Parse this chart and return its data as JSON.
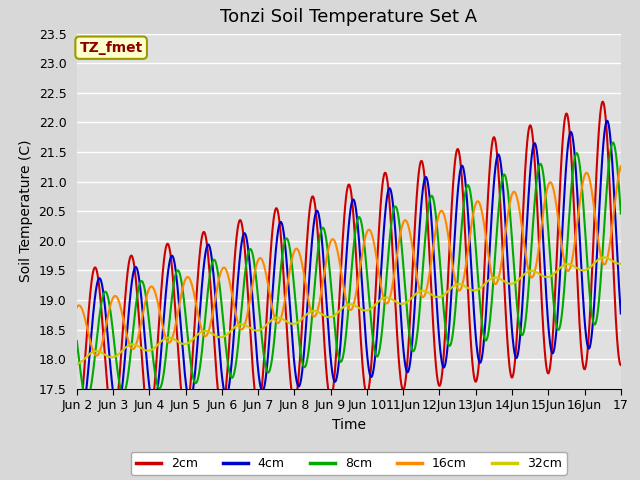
{
  "title": "Tonzi Soil Temperature Set A",
  "xlabel": "Time",
  "ylabel": "Soil Temperature (C)",
  "ylim": [
    17.5,
    23.5
  ],
  "xlim_days": [
    2,
    17
  ],
  "xtick_labels": [
    "Jun 2",
    "Jun 3",
    "Jun 4",
    "Jun 5",
    "Jun 6",
    "Jun 7",
    "Jun 8",
    "Jun 9",
    "Jun 10",
    "11Jun",
    "12Jun",
    "13Jun",
    "14Jun",
    "15Jun",
    "16Jun",
    "17"
  ],
  "xtick_positions": [
    2,
    3,
    4,
    5,
    6,
    7,
    8,
    9,
    10,
    11,
    12,
    13,
    14,
    15,
    16,
    17
  ],
  "series_labels": [
    "2cm",
    "4cm",
    "8cm",
    "16cm",
    "32cm"
  ],
  "series_colors": [
    "#cc0000",
    "#0000cc",
    "#00aa00",
    "#ff8800",
    "#cccc00"
  ],
  "line_widths": [
    1.5,
    1.5,
    1.5,
    1.5,
    1.5
  ],
  "annotation_label": "TZ_fmet",
  "annotation_color": "#8b0000",
  "annotation_bg": "#ffffcc",
  "fig_facecolor": "#d8d8d8",
  "plot_bg": "#e0e0e0",
  "title_fontsize": 13,
  "axis_fontsize": 10,
  "tick_fontsize": 9,
  "yticks": [
    17.5,
    18.0,
    18.5,
    19.0,
    19.5,
    20.0,
    20.5,
    21.0,
    21.5,
    22.0,
    22.5,
    23.0,
    23.5
  ]
}
